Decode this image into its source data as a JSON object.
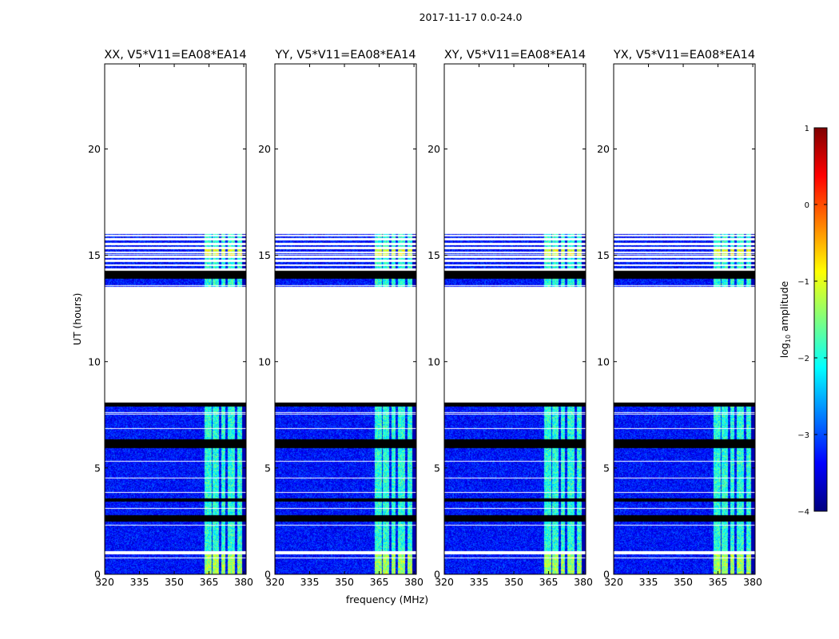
{
  "figure": {
    "suptitle": "2017-11-17 0.0-24.0"
  },
  "chart_data": [
    {
      "type": "heatmap",
      "title": "XX, V5*V11=EA08*EA14",
      "xlabel": "",
      "ylabel": "UT (hours)",
      "xlim": [
        320,
        381
      ],
      "ylim": [
        0,
        24
      ],
      "xticks": [
        "320",
        "335",
        "350",
        "365",
        "380"
      ],
      "yticks": [
        "0",
        "5",
        "10",
        "15",
        "20"
      ]
    },
    {
      "type": "heatmap",
      "title": "YY, V5*V11=EA08*EA14",
      "xlabel": "frequency (MHz)",
      "ylabel": "",
      "xlim": [
        320,
        381
      ],
      "ylim": [
        0,
        24
      ],
      "xticks": [
        "320",
        "335",
        "350",
        "365",
        "380"
      ],
      "yticks": [
        "0",
        "5",
        "10",
        "15",
        "20"
      ]
    },
    {
      "type": "heatmap",
      "title": "XY, V5*V11=EA08*EA14",
      "xlabel": "",
      "ylabel": "",
      "xlim": [
        320,
        381
      ],
      "ylim": [
        0,
        24
      ],
      "xticks": [
        "320",
        "335",
        "350",
        "365",
        "380"
      ],
      "yticks": [
        "0",
        "5",
        "10",
        "15",
        "20"
      ]
    },
    {
      "type": "heatmap",
      "title": "YX, V5*V11=EA08*EA14",
      "xlabel": "",
      "ylabel": "",
      "xlim": [
        320,
        381
      ],
      "ylim": [
        0,
        24
      ],
      "xticks": [
        "320",
        "335",
        "350",
        "365",
        "380"
      ],
      "yticks": [
        "0",
        "5",
        "10",
        "15",
        "20"
      ]
    }
  ],
  "colorbar": {
    "label_main": "log",
    "label_sub": "10",
    "label_tail": " amplitude",
    "range": [
      -4,
      1
    ],
    "ticks": [
      "1",
      "0",
      "−1",
      "−2",
      "−3",
      "−4"
    ],
    "colormap": [
      "#00007f",
      "#0000ff",
      "#007fff",
      "#00ffff",
      "#7fff7f",
      "#ffff00",
      "#ff7f00",
      "#ff0000",
      "#7f0000"
    ]
  },
  "data_rows": {
    "time_range_hours": [
      0,
      16
    ],
    "blank_ranges_hours": [
      [
        0.95,
        1.1
      ],
      [
        8.1,
        13.5
      ],
      [
        9.35,
        13.55
      ],
      [
        16.1,
        24
      ]
    ],
    "black_bands_hours": [
      [
        2.5,
        2.8
      ],
      [
        3.45,
        3.6
      ],
      [
        5.95,
        6.35
      ],
      [
        7.9,
        8.15
      ],
      [
        13.9,
        14.3
      ]
    ],
    "bright_channel_mhz": [
      [
        363,
        366
      ],
      [
        366.5,
        369
      ],
      [
        370,
        372
      ],
      [
        373,
        376
      ],
      [
        377,
        379
      ]
    ]
  }
}
